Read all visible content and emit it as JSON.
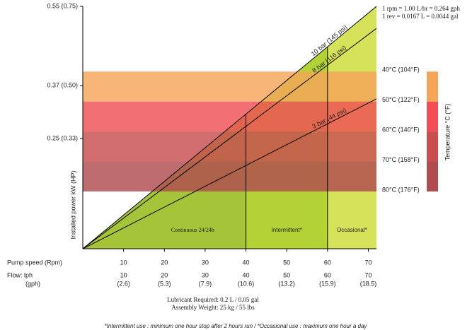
{
  "chart_data": {
    "type": "line",
    "ylabel": "Installed power kW (HP)",
    "xlim": [
      0,
      72
    ],
    "ylim": [
      0,
      0.55
    ],
    "yticks": [
      {
        "value": 0.25,
        "label": "0.25 (0.33)"
      },
      {
        "value": 0.37,
        "label": "0.37 (0.50)"
      },
      {
        "value": 0.55,
        "label": "0.55 (0.75)"
      }
    ],
    "xticks": [
      10,
      20,
      30,
      40,
      50,
      60,
      70
    ],
    "xlabel": "Pump speed (Rpm)",
    "flow_label": "Flow: lph",
    "flow_lph_ticks": [
      10,
      20,
      30,
      40,
      50,
      60,
      70
    ],
    "gph_label": "(gph)",
    "flow_gph_ticks": [
      {
        "value": 2.6,
        "label": "(2.6)"
      },
      {
        "value": 5.3,
        "label": "(5.3)"
      },
      {
        "value": 7.9,
        "label": "(7.9)"
      },
      {
        "value": 10.6,
        "label": "(10.6)"
      },
      {
        "value": 13.2,
        "label": "(13.2)"
      },
      {
        "value": 15.9,
        "label": "(15.9)"
      },
      {
        "value": 18.5,
        "label": "(18.5)"
      }
    ],
    "series": [
      {
        "name": "10 bar (145 psi)",
        "color": "#000000",
        "x": [
          0,
          72
        ],
        "values": [
          0,
          0.55
        ]
      },
      {
        "name": "8 bar (116 psi)",
        "color": "#000000",
        "x": [
          0,
          72
        ],
        "values": [
          0,
          0.5
        ]
      },
      {
        "name": "3 bar (44 psi)",
        "color": "#000000",
        "x": [
          0,
          72
        ],
        "values": [
          0,
          0.34
        ]
      }
    ],
    "zones": [
      {
        "label": "Continuous 24/24h",
        "from": 0,
        "to": 40,
        "color": "#a6c43a"
      },
      {
        "label": "Intermittent*",
        "from": 40,
        "to": 60,
        "color": "#b2d235"
      },
      {
        "label": "Occasional*",
        "from": 60,
        "to": 72,
        "color": "#d6e25a"
      }
    ],
    "temperature_label": "Temperature °C (°F)",
    "temperature_ticks": [
      {
        "value": 0.402,
        "label": "40°C (104°F)"
      },
      {
        "value": 0.334,
        "label": "50°C (122°F)"
      },
      {
        "value": 0.266,
        "label": "60°C (140°F)"
      },
      {
        "value": 0.198,
        "label": "70°C (158°F)"
      },
      {
        "value": 0.13,
        "label": "80°C (176°F)"
      }
    ],
    "temperature_colors": [
      "#f5a55a",
      "#ef4f55",
      "#c84e50",
      "#b04c4f"
    ],
    "conversion_notes": [
      "1 rpm = 1.00 L/hr = 0.264 gph",
      "1 rev = 0.0167 L = 0.0044 gal"
    ],
    "spec_notes": [
      "Lubricant Required:  0.2 L / 0.05 gal",
      "Assembly Weight: 25 kg / 55 lbs"
    ],
    "footnote": "*Intermittent use : minimum one hour stop after 2 hours run / *Occasional use : maximum one hour a day"
  }
}
